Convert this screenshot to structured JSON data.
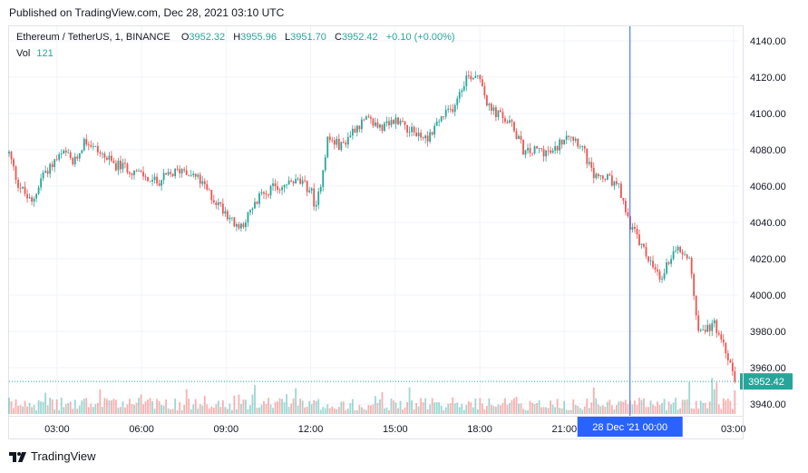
{
  "header": {
    "published": "Published on TradingView.com, Dec 28, 2021 03:10 UTC"
  },
  "legend": {
    "symbol": "Ethereum / TetherUS, 1, BINANCE",
    "o_label": "O",
    "o_value": "3952.32",
    "h_label": "H",
    "h_value": "3955.96",
    "l_label": "L",
    "l_value": "3951.70",
    "c_label": "C",
    "c_value": "3952.42",
    "change": "+0.10 (+0.00%)",
    "vol_label": "Vol",
    "vol_value": "121"
  },
  "colors": {
    "up": "#26a69a",
    "down": "#ef5350",
    "crosshair": "#2962ff",
    "badge": "#26a69a"
  },
  "footer": {
    "brand": "TradingView"
  },
  "chart_data": {
    "type": "candlestick",
    "xlim_hours": [
      1.3,
      27.2
    ],
    "ylim": [
      3932,
      4145
    ],
    "y_ticks": [
      "4140.00",
      "4120.00",
      "4100.00",
      "4080.00",
      "4060.00",
      "4040.00",
      "4020.00",
      "4000.00",
      "3980.00",
      "3960.00",
      "3940.00"
    ],
    "y_tick_values": [
      4140,
      4120,
      4100,
      4080,
      4060,
      4040,
      4020,
      4000,
      3980,
      3960,
      3940
    ],
    "x_ticks": [
      "03:00",
      "06:00",
      "09:00",
      "12:00",
      "15:00",
      "18:00",
      "21:00",
      "03:00"
    ],
    "x_tick_values": [
      3,
      6,
      9,
      12,
      15,
      18,
      21,
      27
    ],
    "crosshair": {
      "x_value": 23.33,
      "label": "28 Dec '21   00:00"
    },
    "last_price": {
      "value": 3952.42,
      "label": "3952.42"
    },
    "close_path": [
      [
        1.3,
        4078
      ],
      [
        1.6,
        4062
      ],
      [
        2.1,
        4050
      ],
      [
        2.5,
        4067
      ],
      [
        3.0,
        4075
      ],
      [
        3.3,
        4078
      ],
      [
        3.6,
        4072
      ],
      [
        4.0,
        4086
      ],
      [
        4.4,
        4080
      ],
      [
        5.0,
        4072
      ],
      [
        5.5,
        4070
      ],
      [
        6.0,
        4066
      ],
      [
        6.5,
        4062
      ],
      [
        7.0,
        4066
      ],
      [
        7.5,
        4070
      ],
      [
        8.0,
        4064
      ],
      [
        8.6,
        4052
      ],
      [
        9.0,
        4046
      ],
      [
        9.4,
        4036
      ],
      [
        9.9,
        4046
      ],
      [
        10.3,
        4057
      ],
      [
        11.0,
        4060
      ],
      [
        11.5,
        4063
      ],
      [
        12.0,
        4058
      ],
      [
        12.2,
        4047
      ],
      [
        12.6,
        4086
      ],
      [
        13.1,
        4082
      ],
      [
        13.6,
        4093
      ],
      [
        14.0,
        4096
      ],
      [
        14.6,
        4092
      ],
      [
        15.1,
        4097
      ],
      [
        15.6,
        4090
      ],
      [
        16.1,
        4086
      ],
      [
        16.6,
        4097
      ],
      [
        17.0,
        4102
      ],
      [
        17.5,
        4120
      ],
      [
        18.0,
        4122
      ],
      [
        18.3,
        4103
      ],
      [
        18.8,
        4098
      ],
      [
        19.2,
        4092
      ],
      [
        19.6,
        4078
      ],
      [
        20.1,
        4080
      ],
      [
        20.6,
        4078
      ],
      [
        21.1,
        4090
      ],
      [
        21.6,
        4083
      ],
      [
        22.0,
        4066
      ],
      [
        22.5,
        4064
      ],
      [
        22.9,
        4060
      ],
      [
        23.3,
        4040
      ],
      [
        23.8,
        4025
      ],
      [
        24.4,
        4008
      ],
      [
        24.9,
        4026
      ],
      [
        25.4,
        4022
      ],
      [
        25.8,
        3978
      ],
      [
        26.3,
        3984
      ],
      [
        26.7,
        3970
      ],
      [
        27.0,
        3959
      ],
      [
        27.05,
        3952.42
      ]
    ],
    "volume_max": 121
  }
}
